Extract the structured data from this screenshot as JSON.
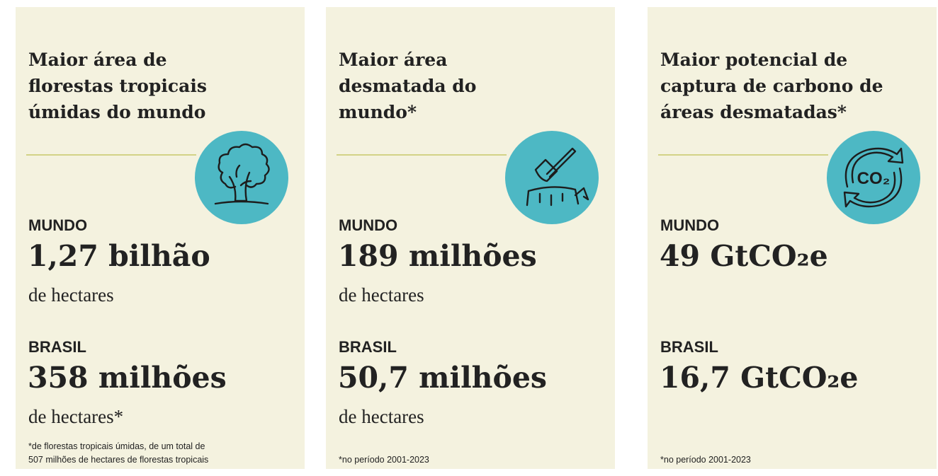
{
  "cards": [
    {
      "title": [
        "Maior área de",
        "florestas tropicais",
        "úmidas do mundo"
      ],
      "sections": [
        {
          "label": "MUNDO",
          "value": "1,27 bilhão",
          "unit": "de hectares"
        },
        {
          "label": "BRASIL",
          "value": "358 milhões",
          "unit": "de hectares*"
        }
      ],
      "footnote": [
        "*de florestas tropicais úmidas, de um total de",
        "507 milhões de hectares de florestas tropicais"
      ]
    },
    {
      "title": [
        "Maior área",
        "desmatada do",
        "mundo*"
      ],
      "sections": [
        {
          "label": "MUNDO",
          "value": "189 milhões",
          "unit": "de hectares"
        },
        {
          "label": "BRASIL",
          "value": "50,7 milhões",
          "unit": "de hectares"
        }
      ],
      "footnote": [
        "*no período 2001-2023"
      ]
    },
    {
      "title": [
        "Maior potencial de",
        "captura de carbono de",
        "áreas desmatadas*"
      ],
      "icon_text": "CO₂",
      "sections": [
        {
          "label": "MUNDO",
          "value": "49 GtCO₂e"
        },
        {
          "label": "BRASIL",
          "value": "16,7 GtCO₂e"
        }
      ],
      "footnote": [
        "*no período 2001-2023"
      ]
    }
  ]
}
